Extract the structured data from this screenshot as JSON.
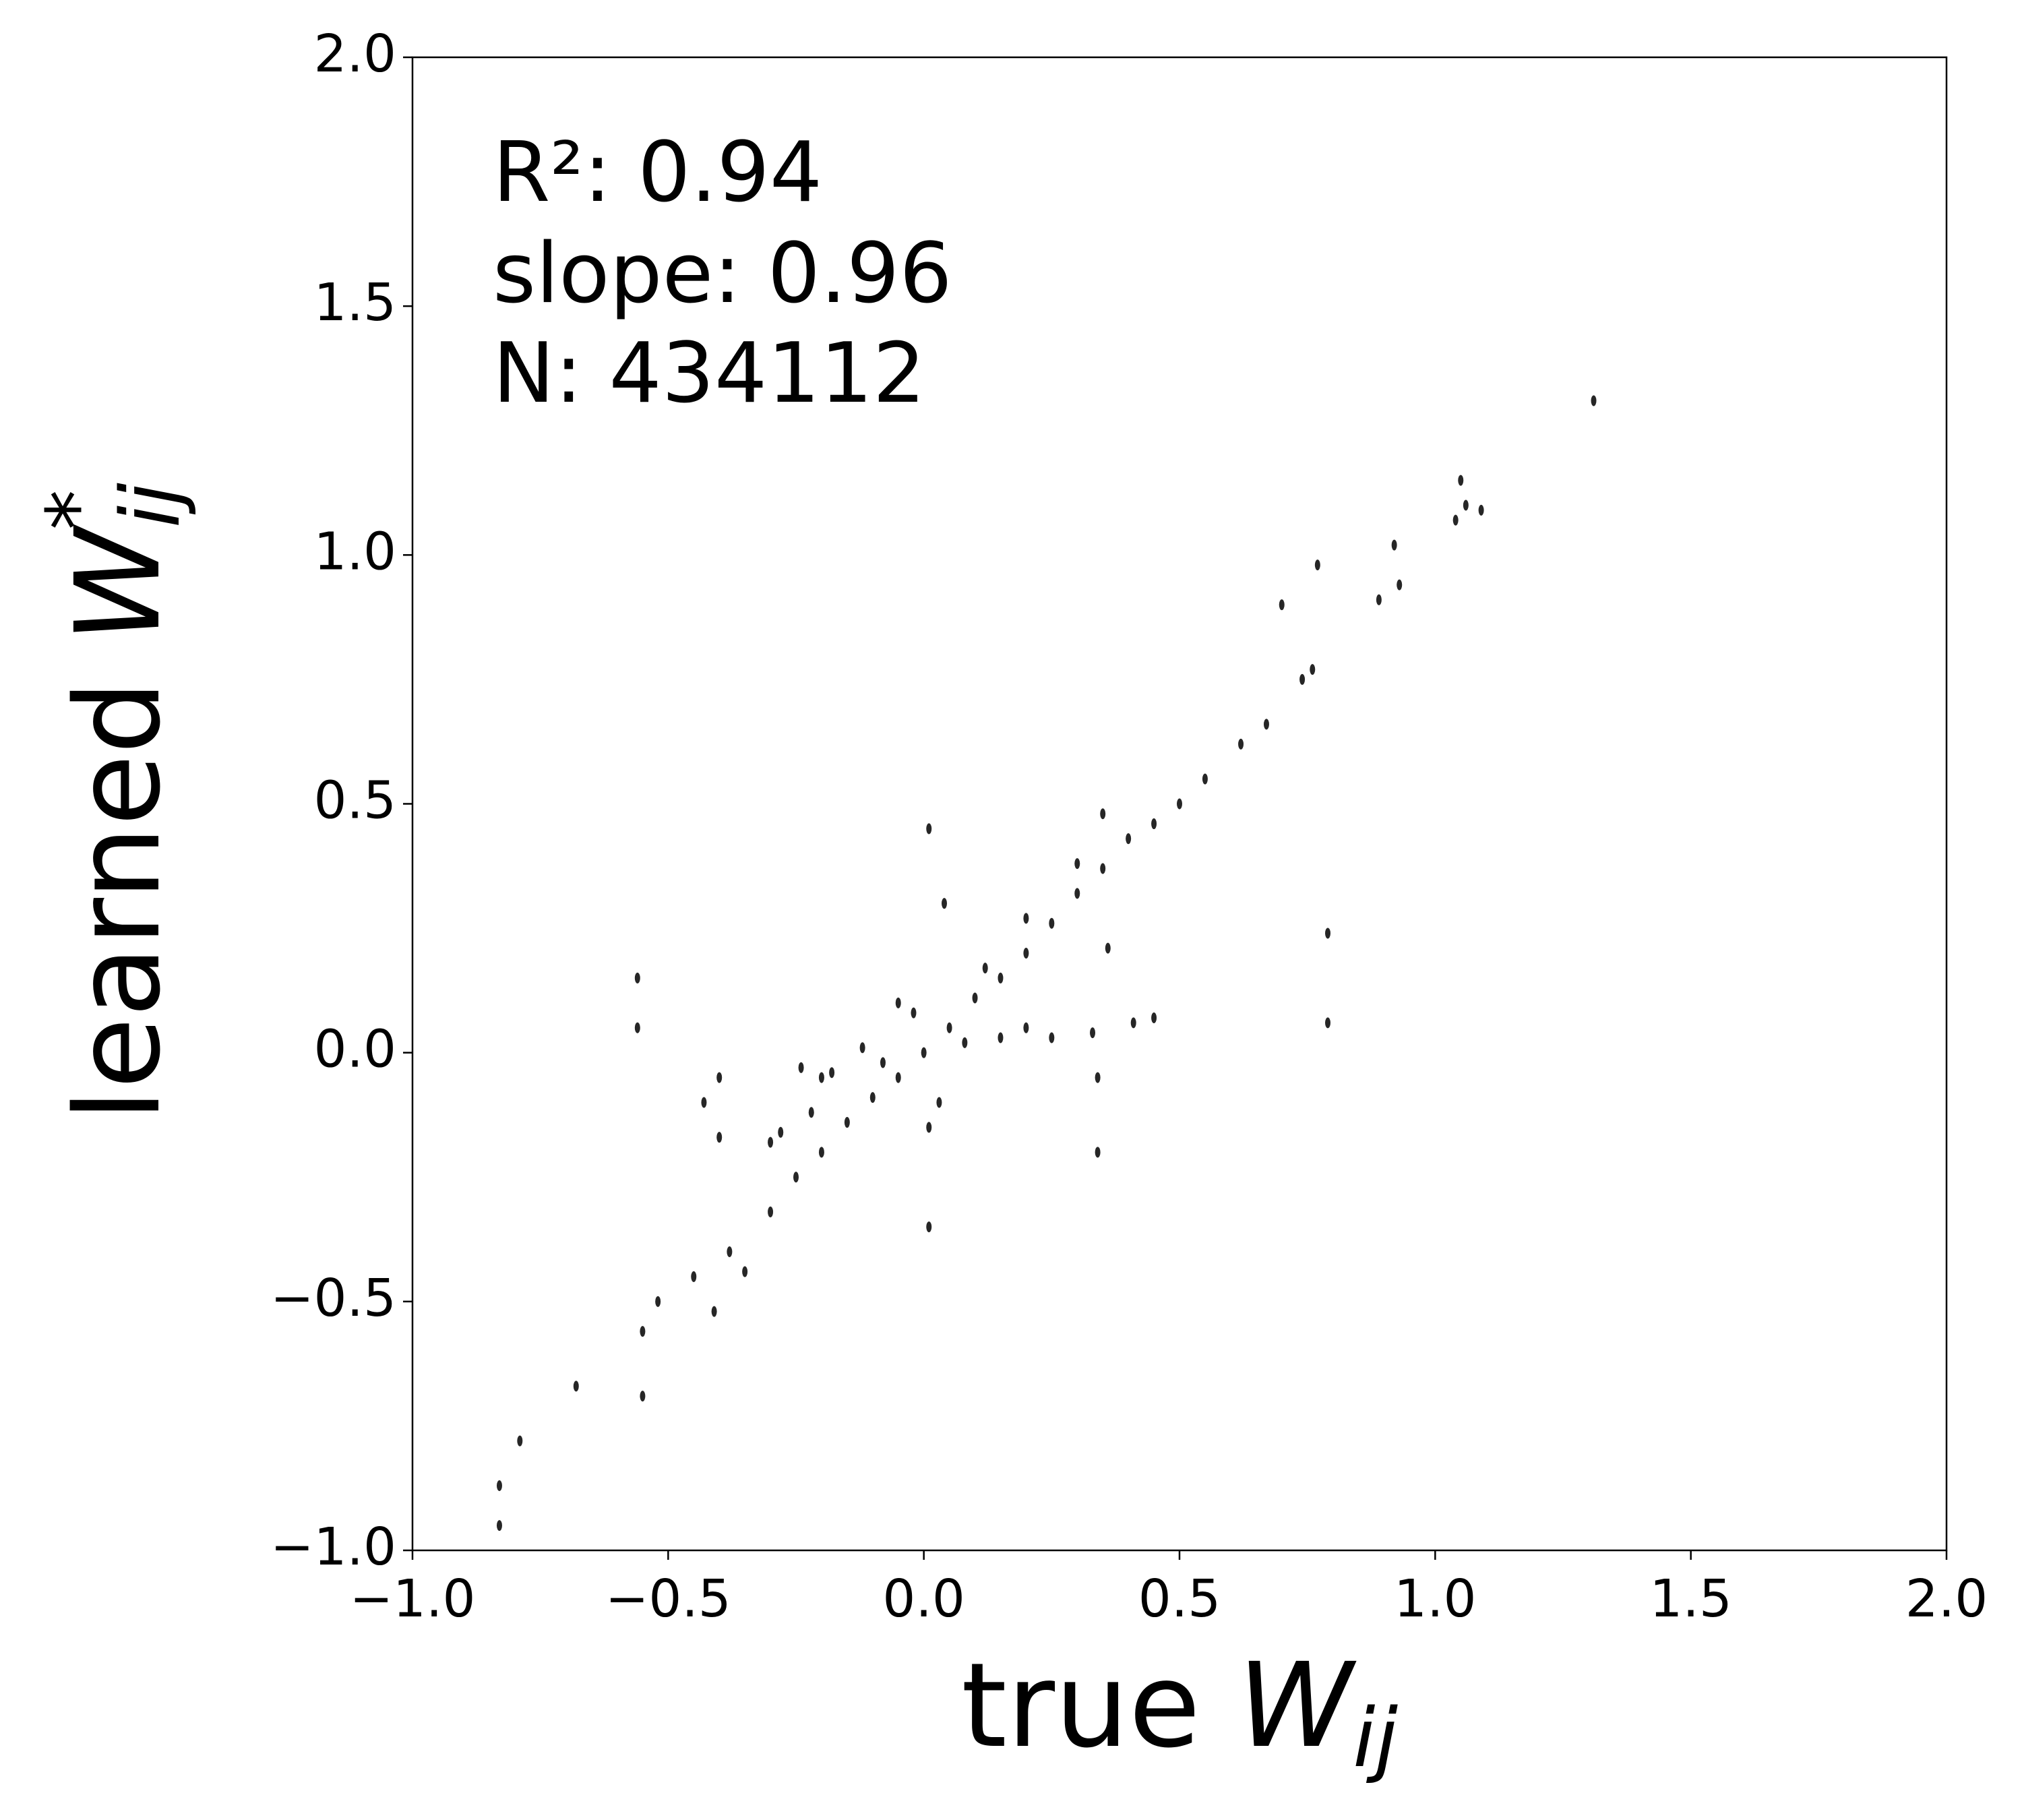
{
  "chart_data": {
    "type": "scatter",
    "xlabel": {
      "text": "true",
      "symbol": "W",
      "subscript": "ij"
    },
    "ylabel": {
      "text": "learned",
      "symbol": "W",
      "subscript": "ij",
      "superscript": "*"
    },
    "annotations": [
      "R²: 0.94",
      "slope: 0.96",
      "N: 434112"
    ],
    "color": "#000000",
    "xlim": [
      -1,
      2
    ],
    "ylim": [
      -1,
      2
    ],
    "xticks": [
      {
        "value": -1,
        "label": "−1.0"
      },
      {
        "value": -0.5,
        "label": "−0.5"
      },
      {
        "value": 0,
        "label": "0.0"
      },
      0.5,
      {
        "value": 1,
        "label": "1.0"
      },
      1.5,
      {
        "value": 2,
        "label": "2.0"
      }
    ],
    "yticks": [
      {
        "value": -1,
        "label": "−1.0"
      },
      {
        "value": -0.5,
        "label": "−0.5"
      },
      {
        "value": 0,
        "label": "0.0"
      },
      0.5,
      {
        "value": 1,
        "label": "1.0"
      },
      1.5,
      {
        "value": 2,
        "label": "2.0"
      }
    ],
    "x": [
      -0.83,
      -0.83,
      -0.79,
      -0.68,
      -0.55,
      -0.55,
      -0.52,
      -0.45,
      -0.41,
      -0.38,
      -0.35,
      -0.3,
      -0.25,
      -0.2,
      -0.15,
      -0.1,
      -0.05,
      0,
      0.05,
      0.1,
      0.15,
      0.2,
      0.25,
      0.3,
      0.35,
      0.4,
      0.45,
      0.5,
      0.55,
      0.62,
      0.67,
      0.74,
      0.76,
      0.77,
      0.7,
      0.89,
      0.93,
      0.92,
      1.04,
      1.06,
      1.09,
      1.05,
      1.31,
      -0.56,
      -0.56,
      -0.4,
      -0.4,
      -0.43,
      -0.3,
      -0.28,
      -0.24,
      -0.22,
      -0.2,
      -0.18,
      -0.12,
      -0.08,
      0.01,
      0.01,
      0.01,
      0.04,
      0.08,
      0.15,
      0.2,
      0.25,
      0.33,
      0.34,
      0.34,
      0.36,
      0.41,
      0.45,
      0.79,
      0.79,
      0.35,
      0.3,
      0.2,
      0.12,
      -0.05,
      0.03,
      -0.02
    ],
    "y": [
      -0.87,
      -0.95,
      -0.78,
      -0.67,
      -0.56,
      -0.69,
      -0.5,
      -0.45,
      -0.52,
      -0.4,
      -0.44,
      -0.32,
      -0.25,
      -0.2,
      -0.14,
      -0.09,
      -0.05,
      0,
      0.05,
      0.11,
      0.15,
      0.2,
      0.26,
      0.32,
      0.37,
      0.43,
      0.46,
      0.5,
      0.55,
      0.62,
      0.66,
      0.75,
      0.77,
      0.98,
      0.9,
      0.91,
      0.94,
      1.02,
      1.07,
      1.1,
      1.09,
      1.15,
      1.31,
      0.05,
      0.15,
      -0.05,
      -0.17,
      -0.1,
      -0.18,
      -0.16,
      -0.03,
      -0.12,
      -0.05,
      -0.04,
      0.01,
      -0.02,
      0.45,
      -0.15,
      -0.35,
      0.3,
      0.02,
      0.03,
      0.05,
      0.03,
      0.04,
      -0.05,
      -0.2,
      0.21,
      0.06,
      0.07,
      0.06,
      0.24,
      0.48,
      0.38,
      0.27,
      0.17,
      0.1,
      -0.1,
      0.08
    ]
  }
}
